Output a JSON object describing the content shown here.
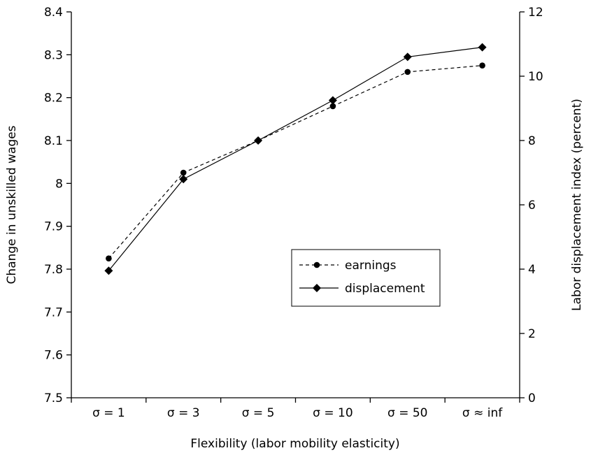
{
  "chart_data": {
    "type": "line",
    "title": "",
    "xlabel": "Flexibility (labor mobility elasticity)",
    "ylabel_left": "Change in unskilled wages",
    "ylabel_right": "Labor displacement index (percent)",
    "categories": [
      "σ = 1",
      "σ = 3",
      "σ = 5",
      "σ = 10",
      "σ = 50",
      "σ ≈ inf"
    ],
    "ylim_left": [
      7.5,
      8.4
    ],
    "yticks_left": [
      "7.5",
      "7.6",
      "7.7",
      "7.8",
      "7.9",
      "8",
      "8.1",
      "8.2",
      "8.3",
      "8.4"
    ],
    "ylim_right": [
      0,
      12
    ],
    "yticks_right": [
      "0",
      "2",
      "4",
      "6",
      "8",
      "10",
      "12"
    ],
    "grid": false,
    "legend_position": "center-right",
    "series": [
      {
        "name": "earnings",
        "axis": "left",
        "style": "dashed",
        "marker": "circle",
        "color": "#000000",
        "values": [
          7.825,
          8.025,
          8.1,
          8.18,
          8.26,
          8.275
        ]
      },
      {
        "name": "displacement",
        "axis": "right",
        "style": "solid",
        "marker": "diamond",
        "color": "#000000",
        "values": [
          3.95,
          6.8,
          8.0,
          9.25,
          10.6,
          10.9
        ]
      }
    ]
  }
}
